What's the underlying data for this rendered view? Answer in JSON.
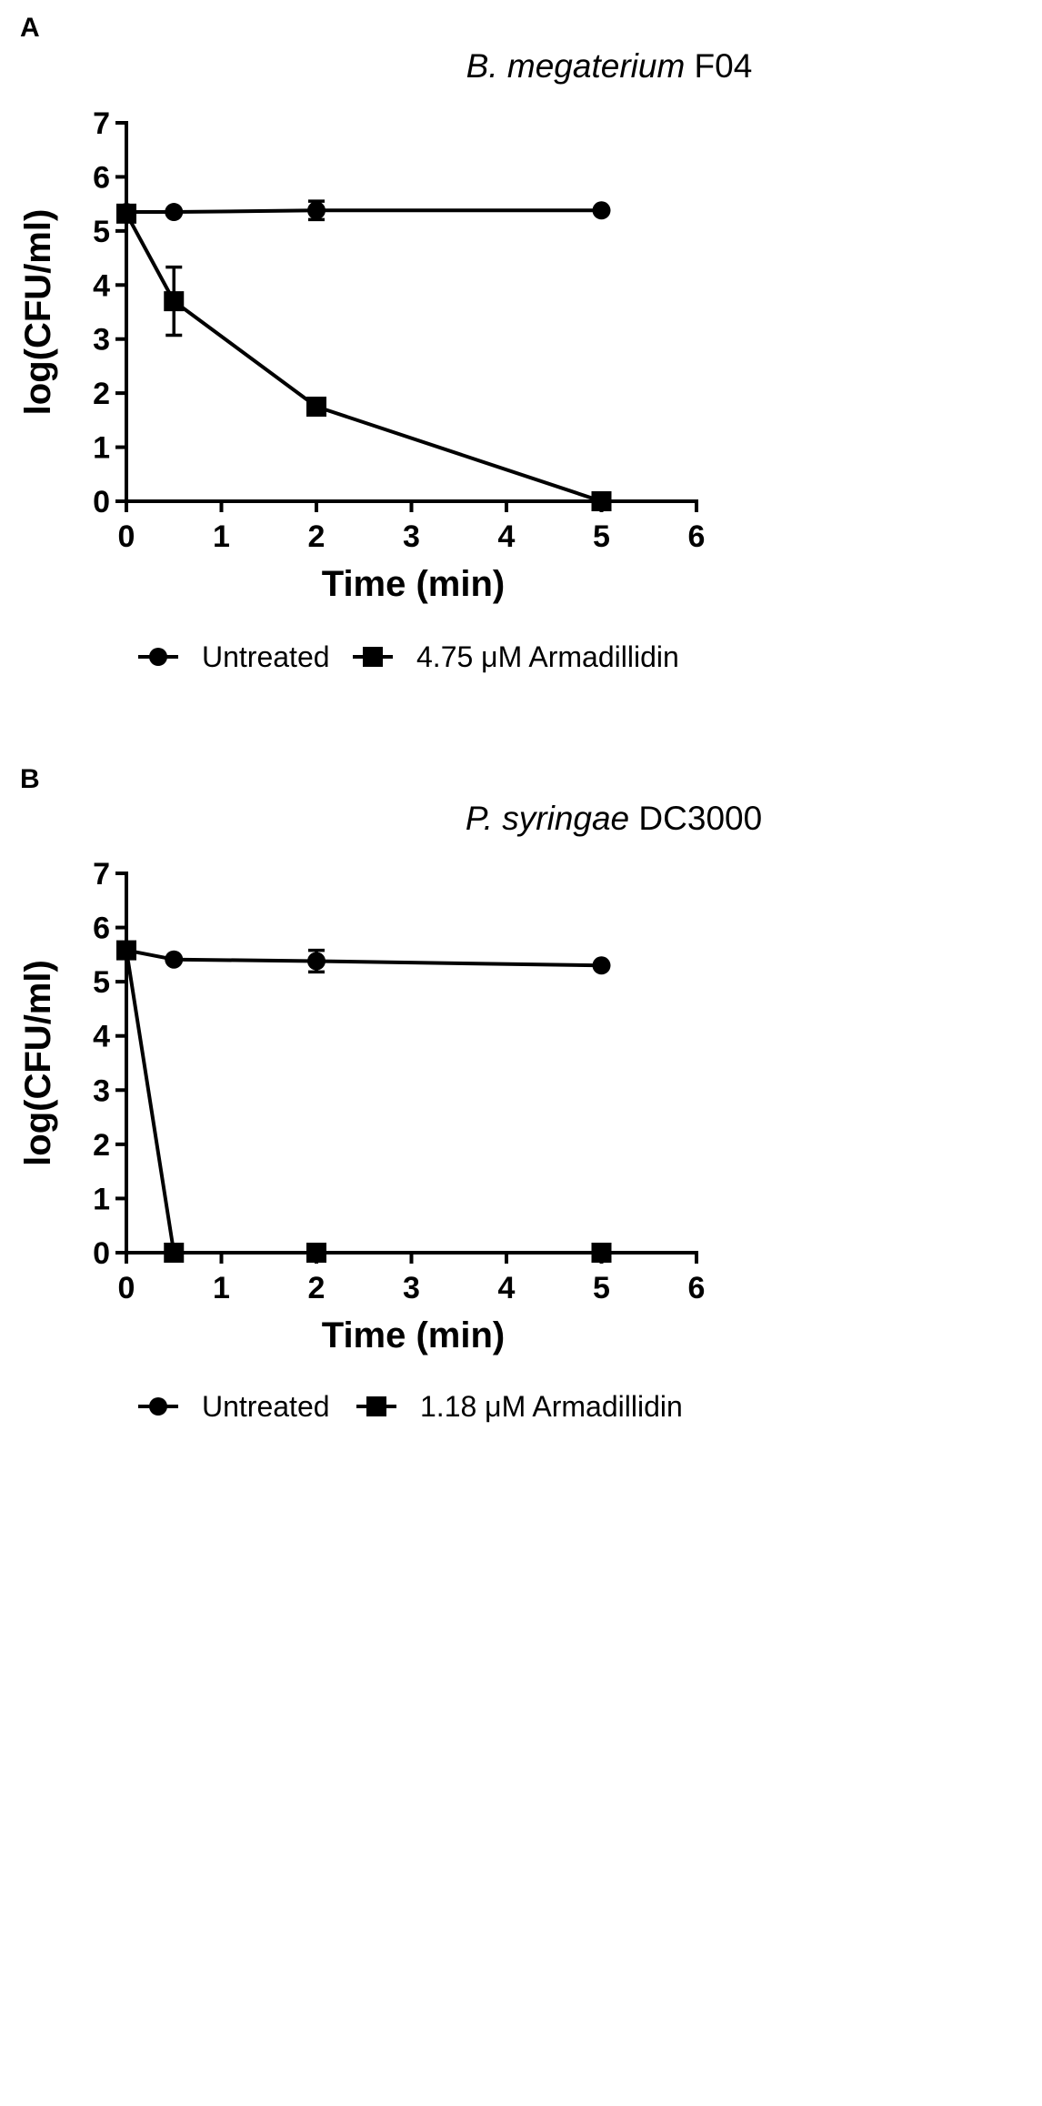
{
  "chart_data": [
    {
      "type": "line",
      "panel_label": "A",
      "title_italic": "B. megaterium",
      "title_rest": " F04",
      "xlabel": "Time (min)",
      "ylabel": "log(CFU/ml)",
      "xlim": [
        0,
        6
      ],
      "ylim": [
        0,
        7
      ],
      "xticks": [
        "0",
        "1",
        "2",
        "3",
        "4",
        "5",
        "6"
      ],
      "yticks": [
        "0",
        "1",
        "2",
        "3",
        "4",
        "5",
        "6",
        "7"
      ],
      "grid": false,
      "legend_position": "bottom",
      "series": [
        {
          "name": "Untreated",
          "marker": "circle",
          "x": [
            0,
            0.5,
            2,
            5
          ],
          "y": [
            5.35,
            5.35,
            5.38,
            5.38
          ],
          "err": [
            0,
            0,
            0.17,
            0
          ]
        },
        {
          "name": "4.75 μM Armadillidin",
          "marker": "square",
          "x": [
            0,
            0.5,
            2,
            5
          ],
          "y": [
            5.32,
            3.7,
            1.75,
            0
          ],
          "err": [
            0.12,
            0.63,
            0,
            0
          ]
        }
      ]
    },
    {
      "type": "line",
      "panel_label": "B",
      "title_italic": "P. syringae",
      "title_rest": " DC3000",
      "xlabel": "Time (min)",
      "ylabel": "log(CFU/ml)",
      "xlim": [
        0,
        6
      ],
      "ylim": [
        0,
        7
      ],
      "xticks": [
        "0",
        "1",
        "2",
        "3",
        "4",
        "5",
        "6"
      ],
      "yticks": [
        "0",
        "1",
        "2",
        "3",
        "4",
        "5",
        "6",
        "7"
      ],
      "grid": false,
      "legend_position": "bottom",
      "series": [
        {
          "name": "Untreated",
          "marker": "circle",
          "x": [
            0,
            0.5,
            2,
            5
          ],
          "y": [
            5.58,
            5.41,
            5.38,
            5.3
          ],
          "err": [
            0,
            0,
            0.2,
            0
          ]
        },
        {
          "name": "1.18 μM Armadillidin",
          "marker": "square",
          "x": [
            0,
            0.5,
            2,
            5
          ],
          "y": [
            5.58,
            0,
            0,
            0
          ],
          "err": [
            0,
            0,
            0,
            0
          ]
        }
      ]
    }
  ]
}
